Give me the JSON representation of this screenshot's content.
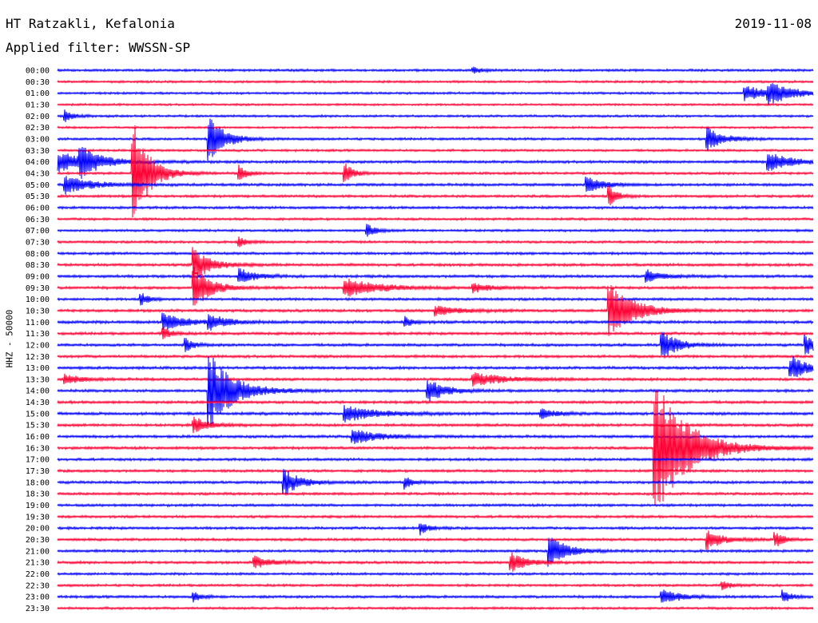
{
  "header": {
    "station": "HT Ratzakli, Kefalonia",
    "filter": "Applied filter: WWSSN-SP",
    "date": "2019-11-08"
  },
  "chart_data": {
    "type": "line",
    "title": "HT Ratzakli, Kefalonia",
    "subtitle": "Applied filter: WWSSN-SP",
    "ylabel": "HHZ - 50000",
    "xlabel": "",
    "grid": false,
    "colors": {
      "even": "#0000ff",
      "odd": "#ff0033"
    },
    "rows": [
      "00:00",
      "00:30",
      "01:00",
      "01:30",
      "02:00",
      "02:30",
      "03:00",
      "03:30",
      "04:00",
      "04:30",
      "05:00",
      "05:30",
      "06:00",
      "06:30",
      "07:00",
      "07:30",
      "08:00",
      "08:30",
      "09:00",
      "09:30",
      "10:00",
      "10:30",
      "11:00",
      "11:30",
      "12:00",
      "12:30",
      "13:00",
      "13:30",
      "14:00",
      "14:30",
      "15:00",
      "15:30",
      "16:00",
      "16:30",
      "17:00",
      "17:30",
      "18:00",
      "18:30",
      "19:00",
      "19:30",
      "20:00",
      "20:30",
      "21:00",
      "21:30",
      "22:00",
      "22:30",
      "23:00",
      "23:30"
    ],
    "baseline_noise": [
      1.6,
      1.5,
      1.5,
      1.4,
      1.5,
      1.4,
      1.6,
      1.5,
      1.8,
      1.6,
      1.8,
      1.7,
      1.7,
      1.6,
      1.6,
      1.6,
      1.7,
      1.8,
      1.8,
      1.8,
      1.7,
      1.8,
      1.9,
      1.8,
      1.8,
      1.8,
      1.8,
      1.8,
      1.8,
      1.8,
      1.9,
      1.8,
      1.8,
      1.8,
      1.7,
      1.7,
      1.8,
      1.7,
      1.7,
      1.7,
      1.7,
      1.7,
      1.7,
      1.7,
      1.6,
      1.6,
      1.7,
      1.6
    ],
    "events": [
      {
        "row": 0,
        "t": 0.55,
        "amp": 4,
        "dur": 0.01
      },
      {
        "row": 2,
        "t": 0.91,
        "amp": 9,
        "dur": 0.03
      },
      {
        "row": 2,
        "t": 0.94,
        "amp": 12,
        "dur": 0.03
      },
      {
        "row": 4,
        "t": 0.01,
        "amp": 7,
        "dur": 0.01
      },
      {
        "row": 6,
        "t": 0.2,
        "amp": 28,
        "dur": 0.02
      },
      {
        "row": 6,
        "t": 0.86,
        "amp": 14,
        "dur": 0.02
      },
      {
        "row": 8,
        "t": 0.0,
        "amp": 12,
        "dur": 0.04
      },
      {
        "row": 8,
        "t": 0.03,
        "amp": 18,
        "dur": 0.02
      },
      {
        "row": 8,
        "t": 0.94,
        "amp": 12,
        "dur": 0.03
      },
      {
        "row": 9,
        "t": 0.1,
        "amp": 70,
        "dur": 0.02
      },
      {
        "row": 9,
        "t": 0.24,
        "amp": 10,
        "dur": 0.01
      },
      {
        "row": 9,
        "t": 0.38,
        "amp": 14,
        "dur": 0.01
      },
      {
        "row": 10,
        "t": 0.01,
        "amp": 12,
        "dur": 0.03
      },
      {
        "row": 10,
        "t": 0.7,
        "amp": 10,
        "dur": 0.02
      },
      {
        "row": 11,
        "t": 0.73,
        "amp": 12,
        "dur": 0.01
      },
      {
        "row": 14,
        "t": 0.41,
        "amp": 8,
        "dur": 0.01
      },
      {
        "row": 15,
        "t": 0.24,
        "amp": 6,
        "dur": 0.01
      },
      {
        "row": 17,
        "t": 0.18,
        "amp": 22,
        "dur": 0.02
      },
      {
        "row": 18,
        "t": 0.24,
        "amp": 10,
        "dur": 0.02
      },
      {
        "row": 18,
        "t": 0.78,
        "amp": 8,
        "dur": 0.02
      },
      {
        "row": 19,
        "t": 0.18,
        "amp": 28,
        "dur": 0.02
      },
      {
        "row": 19,
        "t": 0.38,
        "amp": 12,
        "dur": 0.04
      },
      {
        "row": 19,
        "t": 0.55,
        "amp": 6,
        "dur": 0.02
      },
      {
        "row": 20,
        "t": 0.11,
        "amp": 8,
        "dur": 0.01
      },
      {
        "row": 21,
        "t": 0.73,
        "amp": 36,
        "dur": 0.03
      },
      {
        "row": 21,
        "t": 0.5,
        "amp": 6,
        "dur": 0.03
      },
      {
        "row": 22,
        "t": 0.14,
        "amp": 10,
        "dur": 0.03
      },
      {
        "row": 22,
        "t": 0.2,
        "amp": 10,
        "dur": 0.02
      },
      {
        "row": 22,
        "t": 0.46,
        "amp": 6,
        "dur": 0.01
      },
      {
        "row": 23,
        "t": 0.14,
        "amp": 8,
        "dur": 0.01
      },
      {
        "row": 24,
        "t": 0.17,
        "amp": 8,
        "dur": 0.01
      },
      {
        "row": 24,
        "t": 0.8,
        "amp": 18,
        "dur": 0.02
      },
      {
        "row": 24,
        "t": 0.99,
        "amp": 12,
        "dur": 0.02
      },
      {
        "row": 26,
        "t": 0.97,
        "amp": 16,
        "dur": 0.02
      },
      {
        "row": 27,
        "t": 0.01,
        "amp": 6,
        "dur": 0.02
      },
      {
        "row": 27,
        "t": 0.55,
        "amp": 8,
        "dur": 0.04
      },
      {
        "row": 28,
        "t": 0.2,
        "amp": 50,
        "dur": 0.03
      },
      {
        "row": 28,
        "t": 0.49,
        "amp": 16,
        "dur": 0.02
      },
      {
        "row": 30,
        "t": 0.38,
        "amp": 10,
        "dur": 0.04
      },
      {
        "row": 30,
        "t": 0.64,
        "amp": 6,
        "dur": 0.02
      },
      {
        "row": 31,
        "t": 0.18,
        "amp": 10,
        "dur": 0.02
      },
      {
        "row": 32,
        "t": 0.39,
        "amp": 10,
        "dur": 0.03
      },
      {
        "row": 33,
        "t": 0.79,
        "amp": 90,
        "dur": 0.04
      },
      {
        "row": 36,
        "t": 0.3,
        "amp": 16,
        "dur": 0.02
      },
      {
        "row": 36,
        "t": 0.46,
        "amp": 8,
        "dur": 0.01
      },
      {
        "row": 40,
        "t": 0.48,
        "amp": 8,
        "dur": 0.01
      },
      {
        "row": 41,
        "t": 0.86,
        "amp": 12,
        "dur": 0.02
      },
      {
        "row": 41,
        "t": 0.95,
        "amp": 10,
        "dur": 0.01
      },
      {
        "row": 42,
        "t": 0.65,
        "amp": 22,
        "dur": 0.02
      },
      {
        "row": 43,
        "t": 0.26,
        "amp": 8,
        "dur": 0.02
      },
      {
        "row": 43,
        "t": 0.6,
        "amp": 12,
        "dur": 0.02
      },
      {
        "row": 45,
        "t": 0.88,
        "amp": 6,
        "dur": 0.01
      },
      {
        "row": 46,
        "t": 0.18,
        "amp": 6,
        "dur": 0.01
      },
      {
        "row": 46,
        "t": 0.8,
        "amp": 10,
        "dur": 0.02
      },
      {
        "row": 46,
        "t": 0.96,
        "amp": 8,
        "dur": 0.01
      }
    ]
  }
}
